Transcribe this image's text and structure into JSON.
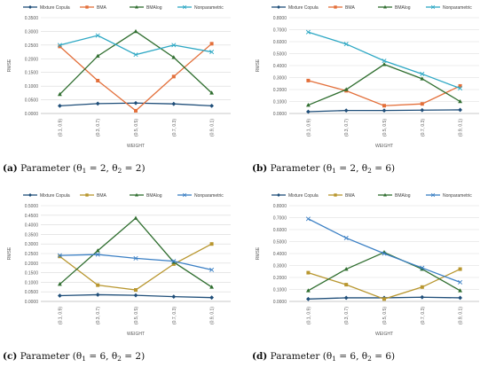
{
  "chart_data": [
    {
      "id": "a",
      "type": "line",
      "xlabel": "WEIGHT",
      "ylabel": "RMSE",
      "categories": [
        "(0.1, 0.9)",
        "(0.3, 0.7)",
        "(0.5, 0.5)",
        "(0.7, 0.3)",
        "(0.9, 0.1)"
      ],
      "ylim": [
        0,
        0.35
      ],
      "ytick_step": 0.05,
      "yticks": [
        "0.0000",
        "0.0500",
        "0.1000",
        "0.1500",
        "0.2000",
        "0.2500",
        "0.3000",
        "0.3500"
      ],
      "legend": "top",
      "grid": true,
      "series": [
        {
          "name": "Mixture Copula",
          "color": "#1f4e79",
          "marker": "diamond",
          "values": [
            0.028,
            0.036,
            0.038,
            0.035,
            0.028
          ]
        },
        {
          "name": "BMA",
          "color": "#e36f3a",
          "marker": "square",
          "values": [
            0.245,
            0.12,
            0.01,
            0.135,
            0.255
          ]
        },
        {
          "name": "BMAlog",
          "color": "#2f6e2f",
          "marker": "triangle",
          "values": [
            0.07,
            0.21,
            0.3,
            0.205,
            0.075
          ]
        },
        {
          "name": "Nonparametric",
          "color": "#2ea8c4",
          "marker": "x",
          "values": [
            0.25,
            0.285,
            0.215,
            0.25,
            0.225
          ]
        }
      ],
      "caption_label": "(a)",
      "caption_text": "Parameter (θ",
      "caption_s1": "1",
      "caption_m": " = 2, θ",
      "caption_s2": "2",
      "caption_e": " = 2)"
    },
    {
      "id": "b",
      "type": "line",
      "xlabel": "WEIGHT",
      "ylabel": "RMSE",
      "categories": [
        "(0.1, 0.9)",
        "(0.3, 0.7)",
        "(0.5, 0.5)",
        "(0.7, 0.3)",
        "(0.9, 0.1)"
      ],
      "ylim": [
        0,
        0.8
      ],
      "ytick_step": 0.1,
      "yticks": [
        "0.0000",
        "0.1000",
        "0.2000",
        "0.3000",
        "0.4000",
        "0.5000",
        "0.6000",
        "0.7000",
        "0.8000"
      ],
      "legend": "top",
      "grid": true,
      "series": [
        {
          "name": "Mixture Copula",
          "color": "#1f4e79",
          "marker": "diamond",
          "values": [
            0.015,
            0.025,
            0.025,
            0.028,
            0.03
          ]
        },
        {
          "name": "BMA",
          "color": "#e36f3a",
          "marker": "square",
          "values": [
            0.275,
            0.19,
            0.065,
            0.08,
            0.23
          ]
        },
        {
          "name": "BMAlog",
          "color": "#2f6e2f",
          "marker": "triangle",
          "values": [
            0.07,
            0.2,
            0.41,
            0.29,
            0.1
          ]
        },
        {
          "name": "Nonparametric",
          "color": "#2ea8c4",
          "marker": "x",
          "values": [
            0.68,
            0.58,
            0.44,
            0.33,
            0.21
          ]
        }
      ],
      "caption_label": "(b)",
      "caption_text": "Parameter (θ",
      "caption_s1": "1",
      "caption_m": " = 2, θ",
      "caption_s2": "2",
      "caption_e": " = 6)"
    },
    {
      "id": "c",
      "type": "line",
      "xlabel": "WEIGHT",
      "ylabel": "RMSE",
      "categories": [
        "(0.1, 0.9)",
        "(0.3, 0.7)",
        "(0.5, 0.5)",
        "(0.7, 0.3)",
        "(0.9, 0.1)"
      ],
      "ylim": [
        0,
        0.5
      ],
      "ytick_step": 0.05,
      "yticks": [
        "0.0000",
        "0.0500",
        "0.1000",
        "0.1500",
        "0.2000",
        "0.2500",
        "0.3000",
        "0.3500",
        "0.4000",
        "0.4500",
        "0.5000"
      ],
      "legend": "top",
      "grid": true,
      "series": [
        {
          "name": "Mixture Copula",
          "color": "#1f4e79",
          "marker": "diamond",
          "values": [
            0.03,
            0.035,
            0.032,
            0.025,
            0.02
          ]
        },
        {
          "name": "BMA",
          "color": "#b8962e",
          "marker": "square",
          "values": [
            0.235,
            0.085,
            0.06,
            0.195,
            0.3
          ]
        },
        {
          "name": "BMAlog",
          "color": "#2f6e2f",
          "marker": "triangle",
          "values": [
            0.09,
            0.265,
            0.435,
            0.205,
            0.075
          ]
        },
        {
          "name": "Nonparametric",
          "color": "#3a7fc4",
          "marker": "x",
          "values": [
            0.24,
            0.245,
            0.225,
            0.21,
            0.165
          ]
        }
      ],
      "caption_label": "(c)",
      "caption_text": "Parameter (θ",
      "caption_s1": "1",
      "caption_m": " = 6, θ",
      "caption_s2": "2",
      "caption_e": " = 2)"
    },
    {
      "id": "d",
      "type": "line",
      "xlabel": "WEIGHT",
      "ylabel": "RMSE",
      "categories": [
        "(0.1, 0.9)",
        "(0.3, 0.7)",
        "(0.5, 0.5)",
        "(0.7, 0.3)",
        "(0.9, 0.1)"
      ],
      "ylim": [
        0,
        0.8
      ],
      "ytick_step": 0.1,
      "yticks": [
        "0.0000",
        "0.1000",
        "0.2000",
        "0.3000",
        "0.4000",
        "0.5000",
        "0.6000",
        "0.7000",
        "0.8000"
      ],
      "legend": "top",
      "grid": true,
      "series": [
        {
          "name": "Mixture Copula",
          "color": "#1f4e79",
          "marker": "diamond",
          "values": [
            0.02,
            0.03,
            0.03,
            0.035,
            0.03
          ]
        },
        {
          "name": "BMA",
          "color": "#b8962e",
          "marker": "square",
          "values": [
            0.24,
            0.14,
            0.02,
            0.12,
            0.27
          ]
        },
        {
          "name": "BMAlog",
          "color": "#2f6e2f",
          "marker": "triangle",
          "values": [
            0.09,
            0.27,
            0.41,
            0.27,
            0.09
          ]
        },
        {
          "name": "Nonparametric",
          "color": "#3a7fc4",
          "marker": "x",
          "values": [
            0.69,
            0.53,
            0.4,
            0.28,
            0.16
          ]
        }
      ],
      "caption_label": "(d)",
      "caption_text": "Parameter (θ",
      "caption_s1": "1",
      "caption_m": " = 6, θ",
      "caption_s2": "2",
      "caption_e": " = 6)"
    }
  ]
}
